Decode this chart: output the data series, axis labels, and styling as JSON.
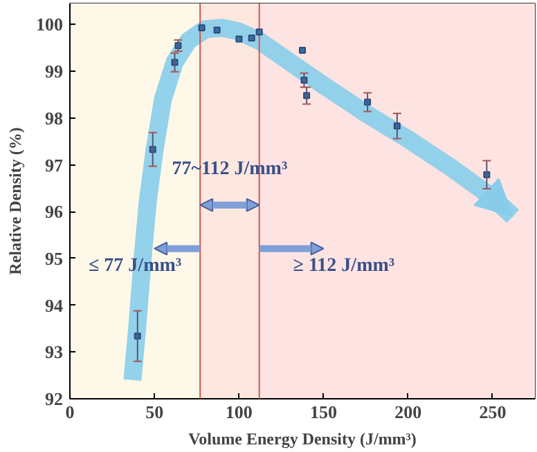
{
  "chart_data": {
    "type": "scatter",
    "xlabel": "Volume Energy Density (J/mm³)",
    "ylabel": "Relative Density (%)",
    "xlim": [
      0,
      275
    ],
    "ylim": [
      92,
      100.45
    ],
    "xticks": [
      0,
      50,
      100,
      150,
      200,
      250
    ],
    "yticks": [
      92,
      93,
      94,
      95,
      96,
      97,
      98,
      99,
      100
    ],
    "marker": "square",
    "series": [
      {
        "type": "line",
        "marker": "none",
        "color": "#87cdea",
        "x": [
          37,
          40,
          43,
          46,
          50,
          55,
          62,
          70,
          80,
          90,
          100,
          112,
          130,
          150,
          175,
          200,
          225,
          250,
          262
        ],
        "values": [
          92.4,
          93.6,
          95,
          96.2,
          97.3,
          98.4,
          99.2,
          99.65,
          99.9,
          99.93,
          99.85,
          99.65,
          99.2,
          98.7,
          98.1,
          97.55,
          96.95,
          96.3,
          95.9
        ]
      },
      {
        "color": "#3a6ea5",
        "x": [
          40,
          49,
          62,
          64,
          78,
          87,
          100,
          107.5,
          112,
          137.5,
          138.5,
          140,
          176,
          193.5,
          246.5
        ],
        "values": [
          93.34,
          97.33,
          99.19,
          99.55,
          99.93,
          99.88,
          99.69,
          99.71,
          99.84,
          99.45,
          98.81,
          98.48,
          98.34,
          97.83,
          96.79
        ],
        "errors": [
          0.54,
          0.36,
          0.2,
          0.12,
          null,
          null,
          null,
          null,
          null,
          null,
          0.15,
          0.18,
          0.2,
          0.27,
          0.3
        ]
      }
    ],
    "ref_lines": [
      {
        "axis": "x",
        "value": 77,
        "color": "#d9534f"
      },
      {
        "axis": "x",
        "value": 112,
        "color": "#d9534f"
      }
    ],
    "bands": [
      {
        "axis": "x",
        "from": 0,
        "to": 77,
        "color": "#fdf8e8"
      },
      {
        "axis": "x",
        "from": 77,
        "to": 112,
        "color": "#fce8df"
      },
      {
        "axis": "x",
        "from": 112,
        "to": 275,
        "color": "#fde4e2"
      }
    ],
    "annotations": [
      "77~112 J/mm³",
      "≤ 77 J/mm³",
      "≥ 112 J/mm³"
    ]
  }
}
